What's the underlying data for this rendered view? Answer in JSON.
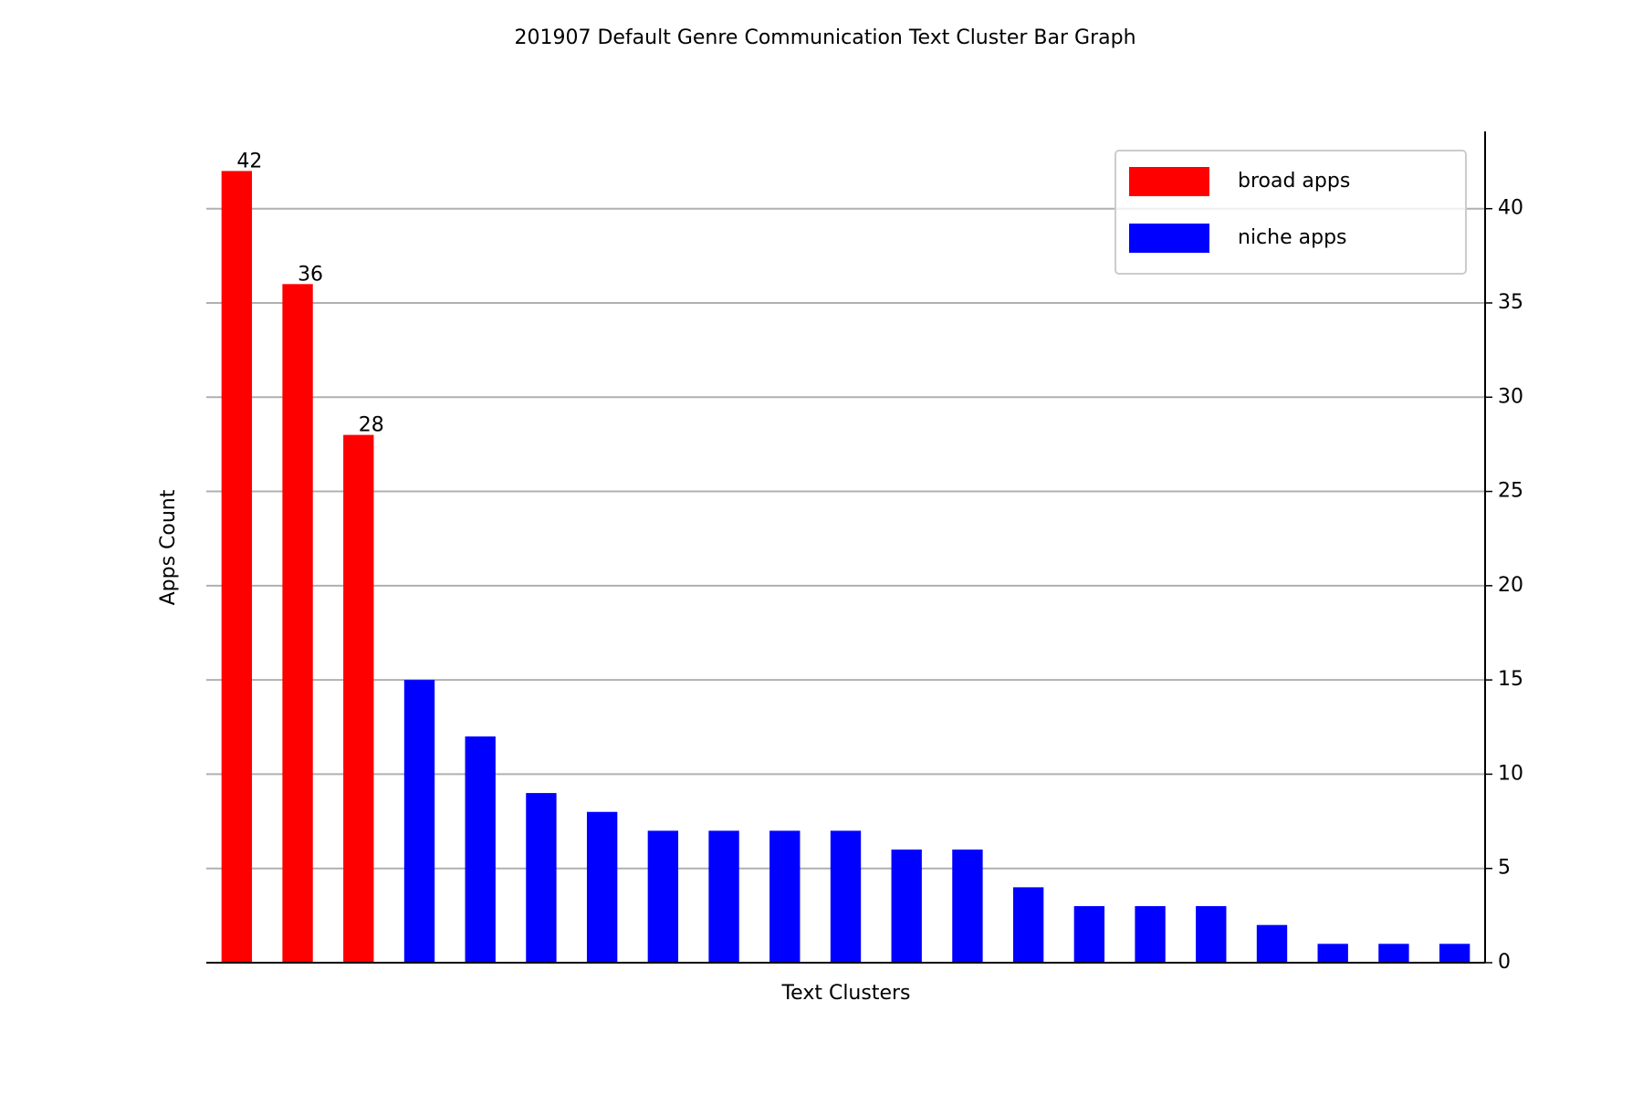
{
  "chart_data": {
    "type": "bar",
    "title": "201907 Default Genre Communication Text Cluster Bar Graph",
    "x_label": "Text Clusters",
    "y_label": "Apps Count",
    "categories": [
      null,
      null,
      null,
      null,
      null,
      null,
      null,
      null,
      null,
      null,
      null,
      null,
      null,
      null,
      null,
      null,
      null,
      null,
      null,
      null,
      null
    ],
    "series": [
      {
        "name": "broad apps",
        "color": "#ff0000",
        "data_labels": true,
        "values": [
          42,
          36,
          28,
          null,
          null,
          null,
          null,
          null,
          null,
          null,
          null,
          null,
          null,
          null,
          null,
          null,
          null,
          null,
          null,
          null,
          null
        ]
      },
      {
        "name": "niche apps",
        "color": "#0000ff",
        "data_labels": false,
        "values": [
          null,
          null,
          null,
          15,
          12,
          9,
          8,
          7,
          7,
          7,
          7,
          6,
          6,
          4,
          3,
          3,
          3,
          2,
          1,
          1,
          1
        ]
      }
    ],
    "ylim": [
      0,
      44.1
    ],
    "yticks": [
      0,
      5,
      10,
      15,
      20,
      25,
      30,
      35,
      40
    ],
    "y_axis_side": "right",
    "grid": true,
    "legend": "upper right"
  }
}
